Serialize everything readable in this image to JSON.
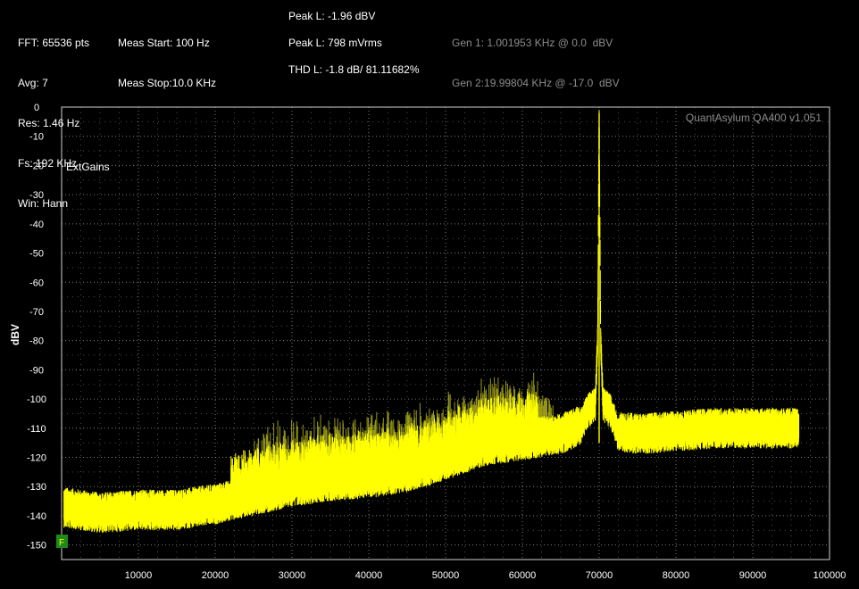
{
  "header": {
    "col1": [
      "FFT: 65536 pts",
      "Avg: 7",
      "Res: 1.46 Hz",
      "Fs: 192 KHz",
      "Win: Hann"
    ],
    "col2": [
      "Meas Start: 100 Hz",
      "Meas Stop:10.0 KHz"
    ],
    "peak_l_dbv": "Peak L: -1.96 dBV",
    "peak_l_mvrms": "Peak L: 798 mVrms",
    "thd_l": "THD L: -1.8 dB/ 81.11682%",
    "gen1": "Gen 1: 1.001953 KHz @ 0.0  dBV",
    "gen2": "Gen 2:19.99804 KHz @ -17.0  dBV"
  },
  "plot": {
    "watermark": "QuantAsylum QA400 v1.051",
    "ext_gains": "ExtGains",
    "marker_label": "F"
  },
  "colors": {
    "background": "#000000",
    "grid": "#8a8a8a",
    "border": "#cfcfcf",
    "trace": "#ffff00",
    "trace_dim": "#c8c820",
    "marker": "#1e8a1e",
    "gen_text": "#8c8c8c"
  },
  "chart_data": {
    "type": "line",
    "title": "",
    "xlabel": "",
    "ylabel": "dBV",
    "xlim": [
      0,
      100000
    ],
    "ylim": [
      -155,
      0
    ],
    "grid": true,
    "xticks": [
      10000,
      20000,
      30000,
      40000,
      50000,
      60000,
      70000,
      80000,
      90000,
      100000
    ],
    "yticks": [
      0,
      -10,
      -20,
      -30,
      -40,
      -50,
      -60,
      -70,
      -80,
      -90,
      -100,
      -110,
      -120,
      -130,
      -140,
      -150
    ],
    "series": [
      {
        "x": [
          0,
          5000,
          10000,
          15000,
          20000,
          25000,
          30000,
          35000,
          40000,
          45000,
          50000,
          55000,
          60000,
          65000,
          67500,
          68500,
          69500,
          69800,
          70000,
          70200,
          70500,
          71500,
          72500,
          75000,
          80000,
          85000,
          90000,
          96000
        ],
        "y": [
          -138,
          -140,
          -139,
          -139,
          -137,
          -134,
          -131,
          -129,
          -128,
          -126,
          -122,
          -117,
          -115,
          -113,
          -110,
          -104,
          -102,
          -80,
          -2,
          -80,
          -102,
          -104,
          -112,
          -113,
          -112,
          -111,
          -111,
          -111
        ]
      }
    ],
    "spurs": [
      {
        "x": 36500,
        "y": -122
      },
      {
        "x": 62000,
        "y": -104
      },
      {
        "x": 76000,
        "y": -110
      }
    ],
    "markers": [
      {
        "label": "F",
        "x": 0,
        "y": -150
      }
    ]
  }
}
